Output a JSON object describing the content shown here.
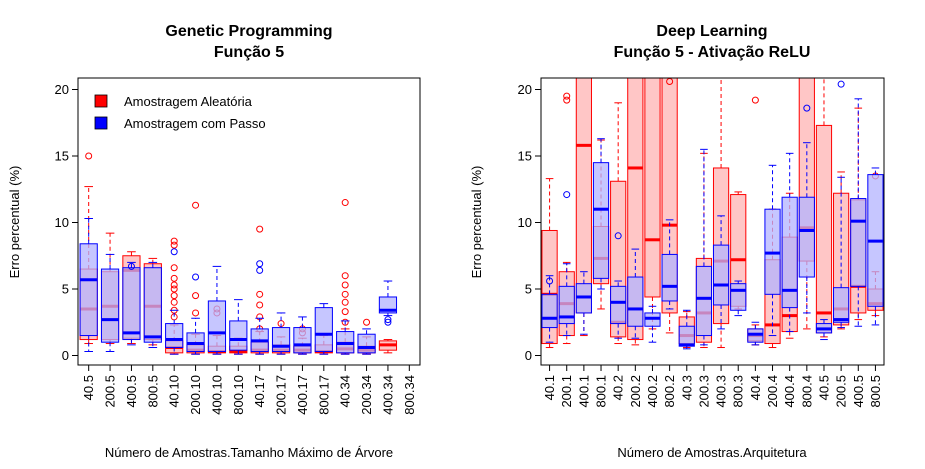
{
  "chart_data": [
    {
      "type": "box",
      "title": "Genetic Programming",
      "subtitle": "Função 5",
      "xlabel": "Número de Amostras.Tamanho Máximo de Árvore",
      "ylabel": "Erro percentual (%)",
      "ylim": [
        0,
        20
      ],
      "yticks": [
        0,
        5,
        10,
        15,
        20
      ],
      "categories": [
        "40.5",
        "200.5",
        "400.5",
        "800.5",
        "40.10",
        "200.10",
        "400.10",
        "800.10",
        "40.17",
        "200.17",
        "400.17",
        "800.17",
        "40.34",
        "200.34",
        "400.34",
        "800.34"
      ],
      "legend": {
        "position": "top-left",
        "entries": [
          "Amostragem Aleatória",
          "Amostragem com Passo"
        ]
      },
      "series": [
        {
          "name": "Amostragem Aleatória",
          "color": "#ff0000",
          "fill": "#ffb3b3",
          "boxes": [
            {
              "cat": 0,
              "min": 0.9,
              "q1": 1.2,
              "med": 3.5,
              "q3": 6.5,
              "max": 12.7,
              "out": [
                15.0
              ]
            },
            {
              "cat": 1,
              "min": 0.9,
              "q1": 1.2,
              "med": 3.7,
              "q3": 6.3,
              "max": 9.2,
              "out": []
            },
            {
              "cat": 2,
              "min": 0.9,
              "q1": 1.3,
              "med": 6.4,
              "q3": 7.5,
              "max": 7.8,
              "out": []
            },
            {
              "cat": 3,
              "min": 0.8,
              "q1": 1.2,
              "med": 3.7,
              "q3": 6.9,
              "max": 7.3,
              "out": []
            },
            {
              "cat": 4,
              "min": 0.1,
              "q1": 0.2,
              "med": 0.6,
              "q3": 1.1,
              "max": 2.3,
              "out": [
                2.9,
                3.4,
                4.0,
                4.5,
                5.0,
                5.3,
                5.8,
                6.6,
                8.3,
                8.6
              ]
            },
            {
              "cat": 5,
              "min": 0.1,
              "q1": 0.2,
              "med": 0.4,
              "q3": 0.8,
              "max": 1.6,
              "out": [
                3.2,
                4.5,
                11.3
              ]
            },
            {
              "cat": 6,
              "min": 0.1,
              "q1": 0.2,
              "med": 0.3,
              "q3": 0.7,
              "max": 1.5,
              "out": [
                3.2,
                3.5
              ]
            },
            {
              "cat": 7,
              "min": 0.1,
              "q1": 0.2,
              "med": 0.3,
              "q3": 0.7,
              "max": 1.3,
              "out": []
            },
            {
              "cat": 8,
              "min": 0.1,
              "q1": 0.2,
              "med": 0.4,
              "q3": 1.0,
              "max": 1.8,
              "out": [
                2.0,
                2.9,
                3.8,
                4.6,
                9.5
              ]
            },
            {
              "cat": 9,
              "min": 0.1,
              "q1": 0.2,
              "med": 0.4,
              "q3": 0.8,
              "max": 1.4,
              "out": [
                2.4
              ]
            },
            {
              "cat": 10,
              "min": 0.1,
              "q1": 0.2,
              "med": 0.4,
              "q3": 0.7,
              "max": 1.3,
              "out": [
                1.7,
                2.0
              ]
            },
            {
              "cat": 11,
              "min": 0.1,
              "q1": 0.2,
              "med": 0.3,
              "q3": 0.8,
              "max": 1.5,
              "out": []
            },
            {
              "cat": 12,
              "min": 0.1,
              "q1": 0.2,
              "med": 0.5,
              "q3": 1.0,
              "max": 2.0,
              "out": [
                2.5,
                3.3,
                4.0,
                4.6,
                5.3,
                6.0,
                11.5
              ]
            },
            {
              "cat": 13,
              "min": 0.1,
              "q1": 0.2,
              "med": 0.4,
              "q3": 0.7,
              "max": 1.4,
              "out": [
                2.5
              ]
            },
            {
              "cat": 14,
              "min": 0.2,
              "q1": 0.4,
              "med": 0.8,
              "q3": 1.1,
              "max": 1.2,
              "out": []
            }
          ]
        },
        {
          "name": "Amostragem com Passo",
          "color": "#0000ff",
          "fill": "#b3b3ff",
          "boxes": [
            {
              "cat": 0,
              "min": 0.3,
              "q1": 1.5,
              "med": 5.7,
              "q3": 8.4,
              "max": 10.3,
              "out": []
            },
            {
              "cat": 1,
              "min": 0.3,
              "q1": 1.0,
              "med": 2.7,
              "q3": 6.5,
              "max": 7.6,
              "out": []
            },
            {
              "cat": 2,
              "min": 0.8,
              "q1": 1.2,
              "med": 1.7,
              "q3": 6.6,
              "max": 7.0,
              "out": [
                6.7
              ]
            },
            {
              "cat": 3,
              "min": 0.6,
              "q1": 1.0,
              "med": 1.4,
              "q3": 6.6,
              "max": 7.0,
              "out": []
            },
            {
              "cat": 4,
              "min": 0.1,
              "q1": 0.6,
              "med": 1.2,
              "q3": 2.4,
              "max": 3.4,
              "out": [
                7.8
              ]
            },
            {
              "cat": 5,
              "min": 0.1,
              "q1": 0.3,
              "med": 0.9,
              "q3": 1.7,
              "max": 2.8,
              "out": [
                5.9
              ]
            },
            {
              "cat": 6,
              "min": 0.1,
              "q1": 0.3,
              "med": 1.7,
              "q3": 4.1,
              "max": 6.7,
              "out": []
            },
            {
              "cat": 7,
              "min": 0.1,
              "q1": 0.4,
              "med": 1.2,
              "q3": 2.6,
              "max": 4.2,
              "out": []
            },
            {
              "cat": 8,
              "min": 0.1,
              "q1": 0.3,
              "med": 1.1,
              "q3": 2.0,
              "max": 2.8,
              "out": [
                6.4,
                6.9
              ]
            },
            {
              "cat": 9,
              "min": 0.1,
              "q1": 0.3,
              "med": 0.7,
              "q3": 2.1,
              "max": 3.2,
              "out": []
            },
            {
              "cat": 10,
              "min": 0.1,
              "q1": 0.2,
              "med": 0.8,
              "q3": 2.1,
              "max": 2.9,
              "out": []
            },
            {
              "cat": 11,
              "min": 0.1,
              "q1": 0.3,
              "med": 1.6,
              "q3": 3.6,
              "max": 3.9,
              "out": []
            },
            {
              "cat": 12,
              "min": 0.1,
              "q1": 0.2,
              "med": 0.9,
              "q3": 1.8,
              "max": 2.6,
              "out": []
            },
            {
              "cat": 13,
              "min": 0.1,
              "q1": 0.2,
              "med": 0.6,
              "q3": 1.6,
              "max": 2.0,
              "out": []
            },
            {
              "cat": 14,
              "min": 3.0,
              "q1": 3.2,
              "med": 3.4,
              "q3": 4.4,
              "max": 5.6,
              "out": [
                2.5,
                2.7
              ]
            }
          ]
        }
      ]
    },
    {
      "type": "box",
      "title": "Deep Learning",
      "subtitle": "Função 5 - Ativação ReLU",
      "xlabel": "Número de Amostras.Arquitetura",
      "ylabel": "Erro percentual (%)",
      "ylim": [
        0,
        20
      ],
      "yticks": [
        0,
        5,
        10,
        15,
        20
      ],
      "categories": [
        "40.1",
        "200.1",
        "400.1",
        "800.1",
        "40.2",
        "200.2",
        "400.2",
        "800.2",
        "40.3",
        "200.3",
        "400.3",
        "800.3",
        "40.4",
        "200.4",
        "400.4",
        "800.4",
        "40.5",
        "200.5",
        "400.5",
        "800.5"
      ],
      "series": [
        {
          "name": "Amostragem Aleatória",
          "color": "#ff0000",
          "fill": "#ffb3b3",
          "boxes": [
            {
              "cat": 0,
              "min": 0.6,
              "q1": 0.9,
              "med": 4.6,
              "q3": 9.4,
              "max": 13.3,
              "out": []
            },
            {
              "cat": 1,
              "min": 0.9,
              "q1": 1.5,
              "med": 3.9,
              "q3": 6.3,
              "max": 7.0,
              "out": [
                19.2,
                19.5
              ]
            },
            {
              "cat": 2,
              "min": 1.5,
              "q1": 3.2,
              "med": 15.8,
              "q3": 21,
              "max": 21,
              "out": []
            },
            {
              "cat": 3,
              "min": 3.5,
              "q1": 5.4,
              "med": 7.3,
              "q3": 9.7,
              "max": 16.2,
              "out": []
            },
            {
              "cat": 4,
              "min": 0.9,
              "q1": 1.4,
              "med": 2.5,
              "q3": 13.1,
              "max": 19.0,
              "out": []
            },
            {
              "cat": 5,
              "min": 0.8,
              "q1": 1.2,
              "med": 14.1,
              "q3": 21,
              "max": 21,
              "out": []
            },
            {
              "cat": 6,
              "min": 2.0,
              "q1": 4.4,
              "med": 8.7,
              "q3": 21,
              "max": 21,
              "out": []
            },
            {
              "cat": 7,
              "min": 1.7,
              "q1": 3.2,
              "med": 9.8,
              "q3": 21,
              "max": 21,
              "out": [
                20.6
              ]
            },
            {
              "cat": 8,
              "min": 0.6,
              "q1": 0.9,
              "med": 1.5,
              "q3": 2.9,
              "max": 3.3,
              "out": []
            },
            {
              "cat": 9,
              "min": 0.6,
              "q1": 1.0,
              "med": 3.2,
              "q3": 7.3,
              "max": 15.2,
              "out": []
            },
            {
              "cat": 10,
              "min": 0.6,
              "q1": 2.4,
              "med": 7.1,
              "q3": 14.1,
              "max": 21,
              "out": []
            },
            {
              "cat": 11,
              "min": 3.5,
              "q1": 3.7,
              "med": 7.2,
              "q3": 12.1,
              "max": 12.3,
              "out": []
            },
            {
              "cat": 12,
              "min": 0.8,
              "q1": 1.1,
              "med": 1.5,
              "q3": 2.0,
              "max": 2.3,
              "out": [
                19.2
              ]
            },
            {
              "cat": 13,
              "min": 0.6,
              "q1": 0.9,
              "med": 2.3,
              "q3": 7.2,
              "max": 11.0,
              "out": []
            },
            {
              "cat": 14,
              "min": 1.3,
              "q1": 1.8,
              "med": 3.0,
              "q3": 8.9,
              "max": 12.2,
              "out": []
            },
            {
              "cat": 15,
              "min": 2.0,
              "q1": 7.1,
              "med": 9.6,
              "q3": 21,
              "max": 21,
              "out": []
            },
            {
              "cat": 16,
              "min": 1.4,
              "q1": 1.7,
              "med": 3.2,
              "q3": 17.3,
              "max": 21,
              "out": []
            },
            {
              "cat": 17,
              "min": 2.0,
              "q1": 2.3,
              "med": 3.5,
              "q3": 12.2,
              "max": 13.8,
              "out": []
            },
            {
              "cat": 18,
              "min": 2.7,
              "q1": 3.2,
              "med": 5.2,
              "q3": 11.7,
              "max": 18.6,
              "out": []
            },
            {
              "cat": 19,
              "min": 3.0,
              "q1": 3.4,
              "med": 3.9,
              "q3": 5.0,
              "max": 6.3,
              "out": [
                13.5
              ]
            }
          ]
        },
        {
          "name": "Amostragem com Passo",
          "color": "#0000ff",
          "fill": "#b3b3ff",
          "boxes": [
            {
              "cat": 0,
              "min": 1.0,
              "q1": 2.1,
              "med": 2.8,
              "q3": 4.6,
              "max": 6.0,
              "out": [
                5.6
              ]
            },
            {
              "cat": 1,
              "min": 1.5,
              "q1": 2.4,
              "med": 2.9,
              "q3": 5.2,
              "max": 6.9,
              "out": [
                12.1
              ]
            },
            {
              "cat": 2,
              "min": 1.6,
              "q1": 3.2,
              "med": 4.4,
              "q3": 5.4,
              "max": 6.3,
              "out": []
            },
            {
              "cat": 3,
              "min": 5.0,
              "q1": 5.8,
              "med": 11.0,
              "q3": 14.5,
              "max": 16.3,
              "out": []
            },
            {
              "cat": 4,
              "min": 1.3,
              "q1": 2.4,
              "med": 4.0,
              "q3": 5.2,
              "max": 5.6,
              "out": [
                9.0
              ]
            },
            {
              "cat": 5,
              "min": 1.3,
              "q1": 2.2,
              "med": 3.5,
              "q3": 5.9,
              "max": 8.0,
              "out": []
            },
            {
              "cat": 6,
              "min": 1.0,
              "q1": 2.2,
              "med": 2.8,
              "q3": 3.2,
              "max": 3.7,
              "out": []
            },
            {
              "cat": 7,
              "min": 3.5,
              "q1": 4.1,
              "med": 5.2,
              "q3": 7.6,
              "max": 10.2,
              "out": []
            },
            {
              "cat": 8,
              "min": 0.5,
              "q1": 0.7,
              "med": 0.8,
              "q3": 2.2,
              "max": 3.4,
              "out": []
            },
            {
              "cat": 9,
              "min": 0.8,
              "q1": 1.5,
              "med": 4.3,
              "q3": 6.7,
              "max": 15.5,
              "out": []
            },
            {
              "cat": 10,
              "min": 2.0,
              "q1": 3.8,
              "med": 5.3,
              "q3": 8.3,
              "max": 10.5,
              "out": []
            },
            {
              "cat": 11,
              "min": 3.0,
              "q1": 3.4,
              "med": 4.9,
              "q3": 5.4,
              "max": 5.6,
              "out": []
            },
            {
              "cat": 12,
              "min": 0.8,
              "q1": 1.0,
              "med": 1.6,
              "q3": 2.0,
              "max": 2.5,
              "out": []
            },
            {
              "cat": 13,
              "min": 1.5,
              "q1": 4.6,
              "med": 7.7,
              "q3": 11.0,
              "max": 14.3,
              "out": []
            },
            {
              "cat": 14,
              "min": 1.8,
              "q1": 3.6,
              "med": 4.9,
              "q3": 11.9,
              "max": 15.2,
              "out": []
            },
            {
              "cat": 15,
              "min": 3.2,
              "q1": 5.9,
              "med": 9.4,
              "q3": 11.9,
              "max": 16.0,
              "out": [
                18.6
              ]
            },
            {
              "cat": 16,
              "min": 1.2,
              "q1": 1.7,
              "med": 2.0,
              "q3": 2.4,
              "max": 2.7,
              "out": []
            },
            {
              "cat": 17,
              "min": 2.1,
              "q1": 2.5,
              "med": 2.7,
              "q3": 5.1,
              "max": 13.4,
              "out": [
                20.4
              ]
            },
            {
              "cat": 18,
              "min": 2.2,
              "q1": 5.2,
              "med": 10.1,
              "q3": 11.8,
              "max": 19.3,
              "out": []
            },
            {
              "cat": 19,
              "min": 2.3,
              "q1": 3.7,
              "med": 8.6,
              "q3": 13.6,
              "max": 14.1,
              "out": []
            }
          ]
        }
      ]
    }
  ]
}
